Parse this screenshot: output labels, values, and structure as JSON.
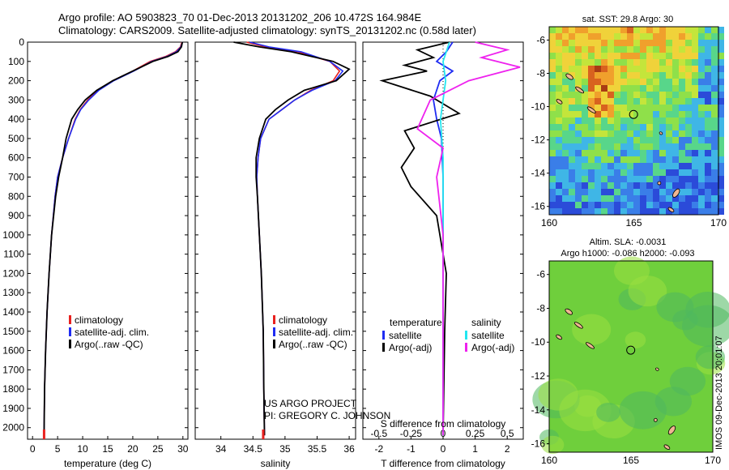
{
  "header": {
    "line1": "Argo profile: AO 5903823_70 01-Dec-2013 20131202_206 10.472S 164.984E",
    "line2": "Climatology: CARS2009. Satellite-adjusted climatology: synTS_20131202.nc (0.58d later)"
  },
  "colors": {
    "climatology": "#e8211f",
    "satellite": "#1f2cf2",
    "argo": "#000000",
    "satellite_salt": "#22e6f0",
    "argo_salt": "#ee22ee"
  },
  "chart_data": [
    {
      "type": "line",
      "name": "temperature",
      "xlabel": "temperature (deg C)",
      "xlim": [
        -1,
        31
      ],
      "xticks": [
        0,
        5,
        10,
        15,
        20,
        25,
        30
      ],
      "ylim": [
        0,
        2060
      ],
      "yticks": [
        0,
        100,
        200,
        300,
        400,
        500,
        600,
        700,
        800,
        900,
        1000,
        1100,
        1200,
        1300,
        1400,
        1500,
        1600,
        1700,
        1800,
        1900,
        2000
      ],
      "legend": [
        "climatology",
        "satellite-adj. clim.",
        "Argo(..raw -QC)"
      ],
      "series": [
        {
          "name": "climatology",
          "x": [
            29.8,
            29.5,
            28.5,
            26.5,
            23.5,
            20,
            16,
            13,
            11,
            9.5,
            8.5,
            7.2,
            6,
            5,
            4.5,
            3.8,
            3.3,
            2.9,
            2.6,
            2.4,
            2.3
          ],
          "y": [
            0,
            25,
            50,
            75,
            100,
            150,
            200,
            250,
            300,
            350,
            400,
            500,
            600,
            700,
            800,
            1000,
            1200,
            1400,
            1600,
            1800,
            2040
          ]
        },
        {
          "name": "satellite-adj. clim.",
          "x": [
            29.9,
            29.6,
            28.7,
            26.8,
            23.8,
            20.2,
            16.2,
            13.2,
            11.2,
            9.6,
            8.6,
            7.2,
            6,
            5,
            4.5,
            3.8,
            3.3,
            2.9,
            2.6,
            2.4,
            2.3
          ],
          "y": [
            0,
            25,
            50,
            75,
            100,
            150,
            200,
            250,
            300,
            350,
            400,
            500,
            600,
            700,
            800,
            1000,
            1200,
            1400,
            1600,
            1800,
            2040
          ]
        },
        {
          "name": "Argo(..raw -QC)",
          "x": [
            29.9,
            29.7,
            29.0,
            27.0,
            24.0,
            20.0,
            16.0,
            12.8,
            10.5,
            9.0,
            7.8,
            6.7,
            6.0,
            5.2,
            4.6,
            3.8,
            3.3,
            2.9,
            2.6,
            2.4,
            2.3
          ],
          "y": [
            0,
            25,
            50,
            75,
            100,
            150,
            200,
            250,
            300,
            350,
            400,
            500,
            600,
            700,
            800,
            1000,
            1200,
            1400,
            1600,
            1800,
            2040
          ]
        }
      ]
    },
    {
      "type": "line",
      "name": "salinity",
      "xlabel": "salinity",
      "xlim": [
        33.6,
        36.1
      ],
      "xticks": [
        34,
        34.5,
        35,
        35.5,
        36
      ],
      "xticklabels": [
        "34",
        "34.5",
        "35",
        "35.5",
        "36"
      ],
      "ylim": [
        0,
        2060
      ],
      "legend": [
        "climatology",
        "satellite-adj. clim.",
        "Argo(..raw -QC)"
      ],
      "series": [
        {
          "name": "climatology",
          "x": [
            34.4,
            34.7,
            35.2,
            35.7,
            35.85,
            35.75,
            35.4,
            35.15,
            34.95,
            34.75,
            34.62,
            34.58,
            34.56,
            34.57,
            34.6,
            34.63,
            34.66,
            34.67,
            34.68
          ],
          "y": [
            0,
            25,
            50,
            100,
            150,
            200,
            250,
            300,
            350,
            400,
            500,
            600,
            700,
            800,
            1000,
            1200,
            1500,
            1800,
            2040
          ]
        },
        {
          "name": "satellite-adj. clim.",
          "x": [
            34.45,
            34.75,
            35.25,
            35.7,
            35.9,
            35.78,
            35.42,
            35.15,
            34.95,
            34.75,
            34.62,
            34.58,
            34.56,
            34.57,
            34.6,
            34.63,
            34.66,
            34.67,
            34.68
          ],
          "y": [
            0,
            25,
            50,
            100,
            150,
            200,
            250,
            300,
            350,
            400,
            500,
            600,
            700,
            800,
            1000,
            1200,
            1500,
            1800,
            2040
          ]
        },
        {
          "name": "Argo(..raw -QC)",
          "x": [
            34.2,
            34.6,
            35.1,
            35.75,
            36.0,
            35.8,
            35.3,
            35.05,
            34.85,
            34.7,
            34.6,
            34.55,
            34.55,
            34.57,
            34.6,
            34.63,
            34.66,
            34.67,
            34.68
          ],
          "y": [
            0,
            25,
            50,
            100,
            140,
            200,
            250,
            300,
            350,
            400,
            500,
            600,
            700,
            800,
            1000,
            1200,
            1500,
            1800,
            2040
          ]
        }
      ]
    },
    {
      "type": "line",
      "name": "difference",
      "xlabel": "T difference from climatology",
      "xlabel2": "S difference from climatology",
      "xlim": [
        -2.5,
        2.5
      ],
      "ylim": [
        0,
        2060
      ],
      "xticks": [
        -2,
        -1,
        0,
        1,
        2
      ],
      "xticks2": [
        -0.5,
        -0.25,
        0,
        0.25,
        0.5
      ],
      "xticklabels2": [
        "-0.5",
        "-0.25",
        "0",
        "0.25",
        "0.5"
      ],
      "legend_title_t": "temperature",
      "legend_title_s": "salinity",
      "legend_t": [
        "satellite",
        "Argo(-adj)"
      ],
      "legend_s": [
        "satellite",
        "Argo(-adj)"
      ],
      "series": [
        {
          "name": "T satellite",
          "x": [
            0.3,
            0.1,
            -0.2,
            0.3,
            -0.1,
            -0.3,
            -0.2,
            -0.05,
            0,
            0,
            0,
            0
          ],
          "y": [
            0,
            50,
            100,
            150,
            200,
            300,
            400,
            500,
            700,
            1000,
            1500,
            2040
          ]
        },
        {
          "name": "T Argo(-adj)",
          "x": [
            0.2,
            -0.8,
            -0.3,
            -1.2,
            -0.5,
            -1.9,
            -0.4,
            0.5,
            -1.2,
            -0.9,
            -1.3,
            -1.0,
            -0.2,
            0.1,
            0.05,
            0
          ],
          "y": [
            0,
            40,
            80,
            120,
            150,
            200,
            280,
            370,
            460,
            550,
            650,
            750,
            900,
            1200,
            1500,
            2040
          ]
        },
        {
          "name": "S satellite",
          "x": [
            0.05,
            0.0,
            0.02,
            0.0,
            -0.02,
            0.0,
            0.0,
            0.0,
            0.0
          ],
          "y": [
            0,
            100,
            200,
            300,
            400,
            600,
            1000,
            1500,
            2040
          ]
        },
        {
          "name": "S Argo(-adj)",
          "x": [
            0.25,
            0.5,
            0.3,
            0.6,
            0.2,
            -0.1,
            -0.2,
            0,
            -0.05,
            0,
            0,
            0
          ],
          "y": [
            0,
            40,
            80,
            130,
            200,
            300,
            450,
            550,
            700,
            1000,
            1500,
            2040
          ]
        }
      ]
    },
    {
      "type": "heatmap",
      "name": "sst-map",
      "title": "sat. SST: 29.8 Argo: 30",
      "xticks": [
        160,
        165,
        170
      ],
      "yticks": [
        -6,
        -8,
        -10,
        -12,
        -14,
        -16
      ],
      "xlim": [
        160,
        170
      ],
      "ylim": [
        -16.5,
        -5.2
      ],
      "marker": {
        "lon": 164.984,
        "lat": -10.472
      }
    },
    {
      "type": "heatmap",
      "name": "sla-map",
      "title": "Altim. SLA: -0.0031",
      "subtitle": "Argo h1000: -0.086 h2000: -0.093",
      "xticks": [
        160,
        165,
        170
      ],
      "yticks": [
        -6,
        -8,
        -10,
        -12,
        -14,
        -16
      ],
      "xlim": [
        160,
        170
      ],
      "ylim": [
        -16.5,
        -5.2
      ],
      "marker": {
        "lon": 164.984,
        "lat": -10.472
      }
    }
  ],
  "credits": {
    "project": "US ARGO PROJECT",
    "pi": "PI: GREGORY C. JOHNSON"
  },
  "stamp": "IMOS 09-Dec-2013 20:01:07"
}
